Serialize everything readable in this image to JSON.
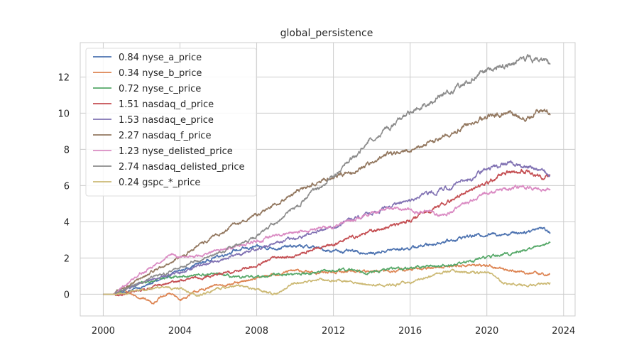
{
  "chart_data": {
    "type": "line",
    "title": "global_persistence",
    "xlabel": "",
    "ylabel": "",
    "xlim": [
      1998.8,
      2024.6
    ],
    "ylim": [
      -1.2,
      13.9
    ],
    "x_ticks": [
      2000,
      2004,
      2008,
      2012,
      2016,
      2020,
      2024
    ],
    "y_ticks": [
      0,
      2,
      4,
      6,
      8,
      10,
      12
    ],
    "grid": true,
    "legend_position": "top-left",
    "series": [
      {
        "name": "0.84 nyse_a_price",
        "color": "#4c72b0",
        "points": [
          [
            2000,
            0
          ],
          [
            2000.5,
            0
          ],
          [
            2001,
            0.1
          ],
          [
            2002,
            0.4
          ],
          [
            2003,
            0.8
          ],
          [
            2004,
            1.3
          ],
          [
            2005,
            1.7
          ],
          [
            2006,
            2.1
          ],
          [
            2007,
            2.45
          ],
          [
            2008,
            2.6
          ],
          [
            2009,
            2.55
          ],
          [
            2010,
            2.65
          ],
          [
            2011,
            2.6
          ],
          [
            2011.5,
            2.45
          ],
          [
            2012,
            2.4
          ],
          [
            2013,
            2.35
          ],
          [
            2014,
            2.25
          ],
          [
            2015,
            2.45
          ],
          [
            2016,
            2.55
          ],
          [
            2017,
            2.75
          ],
          [
            2018,
            2.95
          ],
          [
            2019,
            3.2
          ],
          [
            2020,
            3.3
          ],
          [
            2021,
            3.35
          ],
          [
            2022,
            3.45
          ],
          [
            2022.8,
            3.7
          ],
          [
            2023.3,
            3.45
          ]
        ]
      },
      {
        "name": "0.34 nyse_b_price",
        "color": "#dd8452",
        "points": [
          [
            2000,
            0
          ],
          [
            2000.5,
            0
          ],
          [
            2001,
            0.2
          ],
          [
            2002,
            -0.2
          ],
          [
            2002.6,
            -0.45
          ],
          [
            2003,
            -0.2
          ],
          [
            2003.5,
            0.05
          ],
          [
            2004,
            -0.3
          ],
          [
            2005,
            0.2
          ],
          [
            2006,
            0.5
          ],
          [
            2007,
            0.6
          ],
          [
            2008,
            0.9
          ],
          [
            2009,
            1.1
          ],
          [
            2010,
            1.3
          ],
          [
            2011,
            1.2
          ],
          [
            2012,
            1.2
          ],
          [
            2013,
            1.3
          ],
          [
            2014,
            1.25
          ],
          [
            2015,
            1.3
          ],
          [
            2016,
            1.35
          ],
          [
            2017,
            1.45
          ],
          [
            2018,
            1.55
          ],
          [
            2019,
            1.6
          ],
          [
            2020,
            1.6
          ],
          [
            2021,
            1.35
          ],
          [
            2022,
            1.2
          ],
          [
            2023,
            1.1
          ],
          [
            2023.3,
            1.1
          ]
        ]
      },
      {
        "name": "0.72 nyse_c_price",
        "color": "#55a868",
        "points": [
          [
            2000,
            0
          ],
          [
            2000.5,
            0
          ],
          [
            2001,
            0.2
          ],
          [
            2002,
            0.6
          ],
          [
            2003,
            0.9
          ],
          [
            2004,
            1.0
          ],
          [
            2005,
            1.05
          ],
          [
            2006,
            1.1
          ],
          [
            2007,
            0.9
          ],
          [
            2008,
            0.95
          ],
          [
            2009,
            1.1
          ],
          [
            2010,
            1.1
          ],
          [
            2011,
            1.2
          ],
          [
            2012,
            1.3
          ],
          [
            2013,
            1.35
          ],
          [
            2014,
            1.2
          ],
          [
            2015,
            1.4
          ],
          [
            2016,
            1.45
          ],
          [
            2017,
            1.55
          ],
          [
            2018,
            1.6
          ],
          [
            2019,
            1.8
          ],
          [
            2020,
            2.05
          ],
          [
            2021,
            2.2
          ],
          [
            2022,
            2.45
          ],
          [
            2023,
            2.75
          ],
          [
            2023.3,
            2.9
          ]
        ]
      },
      {
        "name": "1.51 nasdaq_d_price",
        "color": "#c44e52",
        "points": [
          [
            2000,
            0
          ],
          [
            2000.5,
            0
          ],
          [
            2001,
            -0.05
          ],
          [
            2002,
            0.25
          ],
          [
            2003,
            0.5
          ],
          [
            2004,
            0.75
          ],
          [
            2005,
            0.9
          ],
          [
            2006,
            1.1
          ],
          [
            2007,
            1.3
          ],
          [
            2008,
            1.55
          ],
          [
            2009,
            2.05
          ],
          [
            2010,
            2.1
          ],
          [
            2011,
            2.5
          ],
          [
            2012,
            2.75
          ],
          [
            2013,
            3.2
          ],
          [
            2014,
            3.45
          ],
          [
            2015,
            3.75
          ],
          [
            2016,
            4.1
          ],
          [
            2017,
            4.6
          ],
          [
            2018,
            5.1
          ],
          [
            2019,
            5.7
          ],
          [
            2020,
            6.15
          ],
          [
            2021,
            6.75
          ],
          [
            2022,
            6.8
          ],
          [
            2023,
            6.5
          ],
          [
            2023.3,
            6.5
          ]
        ]
      },
      {
        "name": "1.53 nasdaq_e_price",
        "color": "#8172b3",
        "points": [
          [
            2000,
            0
          ],
          [
            2000.5,
            0
          ],
          [
            2001,
            0.2
          ],
          [
            2002,
            0.6
          ],
          [
            2003,
            0.95
          ],
          [
            2004,
            1.2
          ],
          [
            2005,
            1.6
          ],
          [
            2006,
            1.85
          ],
          [
            2007,
            2.2
          ],
          [
            2008,
            2.5
          ],
          [
            2009,
            2.85
          ],
          [
            2010,
            3.05
          ],
          [
            2011,
            3.4
          ],
          [
            2012,
            3.7
          ],
          [
            2013,
            4.2
          ],
          [
            2014,
            4.5
          ],
          [
            2015,
            4.9
          ],
          [
            2016,
            5.15
          ],
          [
            2017,
            5.6
          ],
          [
            2018,
            5.9
          ],
          [
            2019,
            6.3
          ],
          [
            2020,
            6.9
          ],
          [
            2021,
            7.25
          ],
          [
            2022,
            7.05
          ],
          [
            2023,
            6.8
          ],
          [
            2023.3,
            6.6
          ]
        ]
      },
      {
        "name": "2.27 nasdaq_f_price",
        "color": "#937860",
        "points": [
          [
            2000,
            0
          ],
          [
            2000.5,
            0
          ],
          [
            2001,
            0.3
          ],
          [
            2002,
            0.9
          ],
          [
            2003,
            1.5
          ],
          [
            2004,
            2.0
          ],
          [
            2005,
            2.7
          ],
          [
            2006,
            3.3
          ],
          [
            2007,
            3.9
          ],
          [
            2008,
            4.4
          ],
          [
            2009,
            5.0
          ],
          [
            2010,
            5.6
          ],
          [
            2011,
            6.1
          ],
          [
            2012,
            6.5
          ],
          [
            2013,
            6.8
          ],
          [
            2014,
            7.25
          ],
          [
            2015,
            7.8
          ],
          [
            2016,
            7.9
          ],
          [
            2017,
            8.35
          ],
          [
            2018,
            8.8
          ],
          [
            2019,
            9.4
          ],
          [
            2020,
            9.8
          ],
          [
            2021,
            9.95
          ],
          [
            2022,
            9.8
          ],
          [
            2022.8,
            10.2
          ],
          [
            2023.3,
            10.05
          ]
        ]
      },
      {
        "name": "1.23 nyse_delisted_price",
        "color": "#da8bc3",
        "points": [
          [
            2000,
            0
          ],
          [
            2000.5,
            0
          ],
          [
            2001,
            0.4
          ],
          [
            2002,
            1.2
          ],
          [
            2003,
            1.75
          ],
          [
            2003.6,
            2.25
          ],
          [
            2004,
            2.05
          ],
          [
            2005,
            2.1
          ],
          [
            2006,
            2.4
          ],
          [
            2007,
            2.7
          ],
          [
            2008,
            2.9
          ],
          [
            2009,
            3.25
          ],
          [
            2010,
            3.45
          ],
          [
            2011,
            3.6
          ],
          [
            2012,
            3.75
          ],
          [
            2013,
            4.1
          ],
          [
            2014,
            4.45
          ],
          [
            2015,
            4.75
          ],
          [
            2016,
            4.6
          ],
          [
            2017,
            4.55
          ],
          [
            2017.5,
            4.3
          ],
          [
            2018,
            4.45
          ],
          [
            2019,
            5.05
          ],
          [
            2020,
            5.6
          ],
          [
            2021,
            5.8
          ],
          [
            2022,
            5.9
          ],
          [
            2023,
            5.8
          ],
          [
            2023.3,
            5.85
          ]
        ]
      },
      {
        "name": "2.74 nasdaq_delisted_price",
        "color": "#8c8c8c",
        "points": [
          [
            2000,
            0
          ],
          [
            2000.5,
            0
          ],
          [
            2001,
            0.2
          ],
          [
            2002,
            0.7
          ],
          [
            2003,
            1.05
          ],
          [
            2004,
            1.5
          ],
          [
            2005,
            1.9
          ],
          [
            2006,
            2.25
          ],
          [
            2007,
            2.75
          ],
          [
            2008,
            3.2
          ],
          [
            2009,
            4.0
          ],
          [
            2010,
            4.8
          ],
          [
            2011,
            5.7
          ],
          [
            2012,
            6.5
          ],
          [
            2013,
            7.5
          ],
          [
            2014,
            8.6
          ],
          [
            2015,
            9.3
          ],
          [
            2016,
            10.0
          ],
          [
            2017,
            10.6
          ],
          [
            2018,
            11.2
          ],
          [
            2019,
            11.75
          ],
          [
            2020,
            12.4
          ],
          [
            2021,
            12.65
          ],
          [
            2021.7,
            12.95
          ],
          [
            2022.5,
            12.9
          ],
          [
            2023,
            12.9
          ],
          [
            2023.3,
            12.7
          ]
        ]
      },
      {
        "name": "0.24 gspc_*_price",
        "color": "#ccb974",
        "points": [
          [
            2000,
            0
          ],
          [
            2000.5,
            0
          ],
          [
            2001,
            0.05
          ],
          [
            2002,
            0.2
          ],
          [
            2003,
            0.4
          ],
          [
            2004,
            0.3
          ],
          [
            2005,
            -0.1
          ],
          [
            2006,
            0.3
          ],
          [
            2007,
            0.5
          ],
          [
            2008,
            0.25
          ],
          [
            2009,
            0.0
          ],
          [
            2010,
            0.6
          ],
          [
            2011,
            0.8
          ],
          [
            2012,
            0.8
          ],
          [
            2013,
            0.65
          ],
          [
            2014,
            0.5
          ],
          [
            2015,
            0.5
          ],
          [
            2016,
            0.7
          ],
          [
            2017,
            1.0
          ],
          [
            2018,
            1.25
          ],
          [
            2019,
            1.2
          ],
          [
            2020,
            1.2
          ],
          [
            2021,
            0.6
          ],
          [
            2022,
            0.5
          ],
          [
            2023,
            0.6
          ],
          [
            2023.3,
            0.65
          ]
        ]
      }
    ]
  }
}
